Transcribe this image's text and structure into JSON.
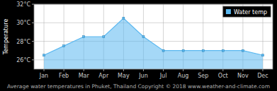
{
  "chart_data": {
    "type": "area",
    "title": "Average water temperatures in Phuket, Thailand   Copyright © 2018 www.weather-and-climate.com",
    "y_label": "Temperature",
    "categories": [
      "Jan",
      "Feb",
      "Mar",
      "Apr",
      "May",
      "Jun",
      "Jul",
      "Aug",
      "Sep",
      "Oct",
      "Nov",
      "Dec"
    ],
    "series": [
      {
        "name": "Water temp",
        "color": "#5bb8f0",
        "values": [
          26.5,
          27.5,
          28.5,
          28.5,
          30.5,
          28.5,
          27.0,
          27.0,
          27.0,
          27.0,
          27.0,
          26.5
        ]
      }
    ],
    "ylim": [
      25,
      32
    ],
    "yticks": [
      {
        "value": 26,
        "label": "26°C"
      },
      {
        "value": 28,
        "label": "28°C"
      },
      {
        "value": 30,
        "label": "30°C"
      },
      {
        "value": 32,
        "label": "32°C"
      }
    ],
    "grid": true,
    "legend": "top-right"
  }
}
